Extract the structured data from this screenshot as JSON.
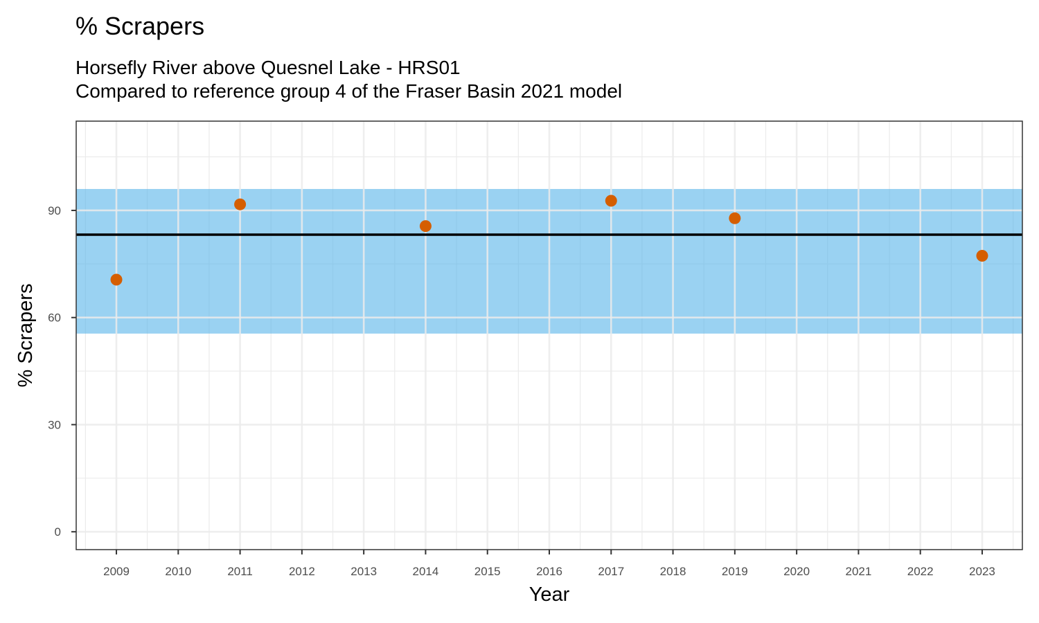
{
  "chart_data": {
    "type": "scatter",
    "title": "% Scrapers",
    "subtitle_lines": [
      "Horsefly River above Quesnel Lake - HRS01",
      "Compared to reference group 4 of the Fraser Basin 2021 model"
    ],
    "xlabel": "Year",
    "ylabel": "% Scrapers",
    "xlim": [
      2008.35,
      2023.65
    ],
    "ylim": [
      -5,
      115
    ],
    "x_ticks": [
      2009,
      2010,
      2011,
      2012,
      2013,
      2014,
      2015,
      2016,
      2017,
      2018,
      2019,
      2020,
      2021,
      2022,
      2023
    ],
    "y_ticks": [
      0,
      30,
      60,
      90
    ],
    "grid": true,
    "reference_band": {
      "low": 55.5,
      "high": 96,
      "color": "#56B4E9"
    },
    "reference_line": {
      "value": 83.2,
      "color": "#000000"
    },
    "series": [
      {
        "color": "#D55E00",
        "points": [
          {
            "x": 2009,
            "y": 70.6
          },
          {
            "x": 2011,
            "y": 91.7
          },
          {
            "x": 2014,
            "y": 85.6
          },
          {
            "x": 2017,
            "y": 92.7
          },
          {
            "x": 2019,
            "y": 87.8
          },
          {
            "x": 2023,
            "y": 77.3
          }
        ]
      }
    ]
  }
}
